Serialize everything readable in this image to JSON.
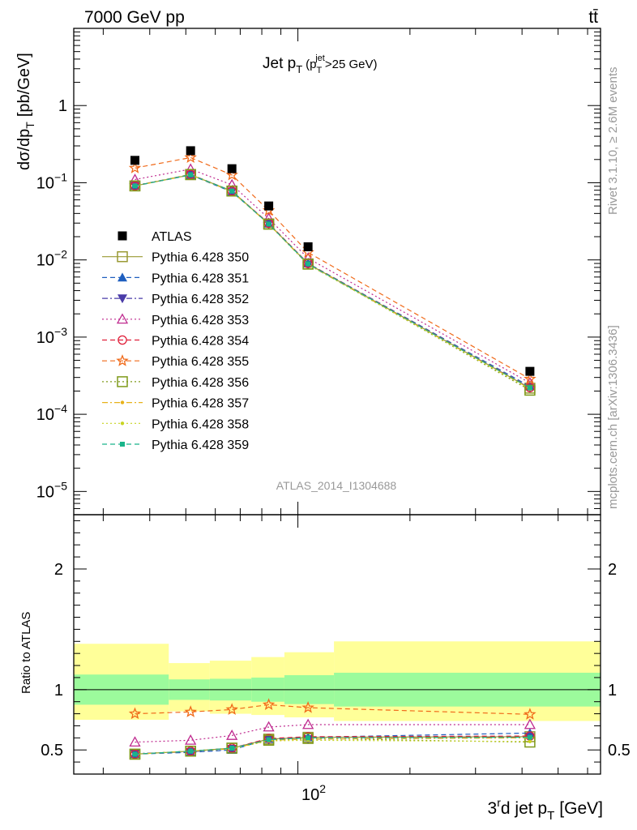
{
  "header": {
    "energy_label": "7000 GeV pp",
    "process_label": "tt̄"
  },
  "side_labels": {
    "rivet": "Rivet 3.1.10, ≥ 2.6M events",
    "mcplots": "mcplots.cern.ch [arXiv:1306.3436]"
  },
  "chart_data": [
    {
      "type": "scatter",
      "panel": "main",
      "title": "Jet p_T (p_T^jet>25 GeV)",
      "title_parts": {
        "main": "Jet p",
        "sub": "T",
        "paren_open": "(p",
        "paren_sub": "T",
        "paren_sup": "jet",
        "paren_rest": ">25 GeV)"
      },
      "ylabel": "dσ/dp_T [pb/GeV]",
      "ylabel_parts": {
        "main": "dσ/dp",
        "sub": "T",
        "unit": "[pb/GeV]"
      },
      "watermark": "ATLAS_2014_I1304688",
      "yscale": "log",
      "xscale": "log",
      "xlim": [
        25,
        650
      ],
      "ylim": [
        5e-06,
        10
      ],
      "y_ticks": [
        {
          "value": 1e-05,
          "base": "10",
          "exp": "−5"
        },
        {
          "value": 0.0001,
          "base": "10",
          "exp": "−4"
        },
        {
          "value": 0.001,
          "base": "10",
          "exp": "−3"
        },
        {
          "value": 0.01,
          "base": "10",
          "exp": "−2"
        },
        {
          "value": 0.1,
          "base": "10",
          "exp": "−1"
        },
        {
          "value": 1,
          "base": "1",
          "exp": ""
        }
      ],
      "x": [
        36.5,
        51.5,
        66.5,
        83.5,
        106.5,
        420
      ],
      "legend_position": "middle-left",
      "series": [
        {
          "name": "ATLAS",
          "color": "#000000",
          "marker": "filled-square",
          "dash": "none",
          "values": [
            0.195,
            0.26,
            0.152,
            0.05,
            0.0148,
            0.00036
          ]
        },
        {
          "name": "Pythia 6.428 350",
          "color": "#999933",
          "marker": "open-square",
          "dash": "solid",
          "values": [
            0.091,
            0.127,
            0.078,
            0.0293,
            0.0089,
            0.000218
          ]
        },
        {
          "name": "Pythia 6.428 351",
          "color": "#1f5fbf",
          "marker": "filled-triangle-up",
          "dash": "dashed",
          "values": [
            0.091,
            0.126,
            0.076,
            0.0295,
            0.009,
            0.00023
          ]
        },
        {
          "name": "Pythia 6.428 352",
          "color": "#4a3ba8",
          "marker": "filled-triangle-down",
          "dash": "dashdot",
          "values": [
            0.092,
            0.127,
            0.077,
            0.0293,
            0.0087,
            0.000218
          ]
        },
        {
          "name": "Pythia 6.428 353",
          "color": "#bf2a8f",
          "marker": "open-triangle-up",
          "dash": "dotted",
          "values": [
            0.11,
            0.15,
            0.094,
            0.0345,
            0.0105,
            0.000255
          ]
        },
        {
          "name": "Pythia 6.428 354",
          "color": "#e0203a",
          "marker": "open-circle",
          "dash": "dashed",
          "values": [
            0.091,
            0.128,
            0.078,
            0.0298,
            0.009,
            0.000222
          ]
        },
        {
          "name": "Pythia 6.428 355",
          "color": "#f06a1a",
          "marker": "open-star",
          "dash": "dashed",
          "values": [
            0.155,
            0.212,
            0.126,
            0.0437,
            0.0125,
            0.000287
          ]
        },
        {
          "name": "Pythia 6.428 356",
          "color": "#7f9a1a",
          "marker": "open-square",
          "dash": "dotted",
          "values": [
            0.091,
            0.128,
            0.078,
            0.029,
            0.0088,
            0.000205
          ]
        },
        {
          "name": "Pythia 6.428 357",
          "color": "#e8b21a",
          "marker": "filled-small",
          "dash": "dashdot",
          "values": [
            0.091,
            0.127,
            0.077,
            0.0291,
            0.0088,
            0.000215
          ]
        },
        {
          "name": "Pythia 6.428 358",
          "color": "#c8d422",
          "marker": "filled-small",
          "dash": "dotted",
          "values": [
            0.091,
            0.127,
            0.077,
            0.029,
            0.0087,
            0.000212
          ]
        },
        {
          "name": "Pythia 6.428 359",
          "color": "#19b58a",
          "marker": "filled-square-small",
          "dash": "dashed",
          "values": [
            0.091,
            0.127,
            0.078,
            0.0292,
            0.0089,
            0.00022
          ]
        }
      ]
    },
    {
      "type": "line",
      "panel": "ratio",
      "ylabel": "Ratio to ATLAS",
      "xlabel": "3^rd jet p_T [GeV]",
      "xlabel_parts": {
        "a": "3",
        "sup": "r",
        "b": "d jet p",
        "sub": "T",
        "unit": "[GeV]"
      },
      "ylim": [
        0.3,
        2.45
      ],
      "y_ticks": [
        "0.5",
        "1",
        "2"
      ],
      "x_ticks": [
        "10",
        "2"
      ],
      "bands": [
        {
          "x_lo": 25,
          "x_hi": 45,
          "stat_lo": 0.875,
          "stat_hi": 1.125,
          "tot_lo": 0.75,
          "tot_hi": 1.38
        },
        {
          "x_lo": 45,
          "x_hi": 58,
          "stat_lo": 0.915,
          "stat_hi": 1.085,
          "tot_lo": 0.82,
          "tot_hi": 1.22
        },
        {
          "x_lo": 58,
          "x_hi": 75,
          "stat_lo": 0.91,
          "stat_hi": 1.09,
          "tot_lo": 0.8,
          "tot_hi": 1.24
        },
        {
          "x_lo": 75,
          "x_hi": 92,
          "stat_lo": 0.9,
          "stat_hi": 1.1,
          "tot_lo": 0.79,
          "tot_hi": 1.27
        },
        {
          "x_lo": 92,
          "x_hi": 125,
          "stat_lo": 0.88,
          "stat_hi": 1.12,
          "tot_lo": 0.77,
          "tot_hi": 1.31
        },
        {
          "x_lo": 125,
          "x_hi": 650,
          "stat_lo": 0.86,
          "stat_hi": 1.14,
          "tot_lo": 0.74,
          "tot_hi": 1.4
        }
      ],
      "x": [
        36.5,
        51.5,
        66.5,
        83.5,
        106.5,
        420
      ],
      "series": [
        {
          "name": "Pythia 6.428 350",
          "values": [
            0.465,
            0.49,
            0.515,
            0.59,
            0.605,
            0.61
          ]
        },
        {
          "name": "Pythia 6.428 351",
          "values": [
            0.465,
            0.48,
            0.5,
            0.59,
            0.605,
            0.64
          ]
        },
        {
          "name": "Pythia 6.428 352",
          "values": [
            0.47,
            0.485,
            0.51,
            0.585,
            0.59,
            0.605
          ]
        },
        {
          "name": "Pythia 6.428 353",
          "values": [
            0.565,
            0.58,
            0.62,
            0.69,
            0.71,
            0.71
          ]
        },
        {
          "name": "Pythia 6.428 354",
          "values": [
            0.465,
            0.49,
            0.515,
            0.595,
            0.61,
            0.615
          ]
        },
        {
          "name": "Pythia 6.428 355",
          "values": [
            0.8,
            0.815,
            0.835,
            0.875,
            0.85,
            0.795
          ]
        },
        {
          "name": "Pythia 6.428 356",
          "values": [
            0.465,
            0.49,
            0.515,
            0.58,
            0.595,
            0.565
          ]
        },
        {
          "name": "Pythia 6.428 357",
          "values": [
            0.465,
            0.49,
            0.51,
            0.58,
            0.59,
            0.6
          ]
        },
        {
          "name": "Pythia 6.428 358",
          "values": [
            0.465,
            0.49,
            0.51,
            0.575,
            0.58,
            0.57
          ]
        },
        {
          "name": "Pythia 6.428 359",
          "values": [
            0.465,
            0.49,
            0.515,
            0.585,
            0.6,
            0.605
          ]
        }
      ]
    }
  ]
}
